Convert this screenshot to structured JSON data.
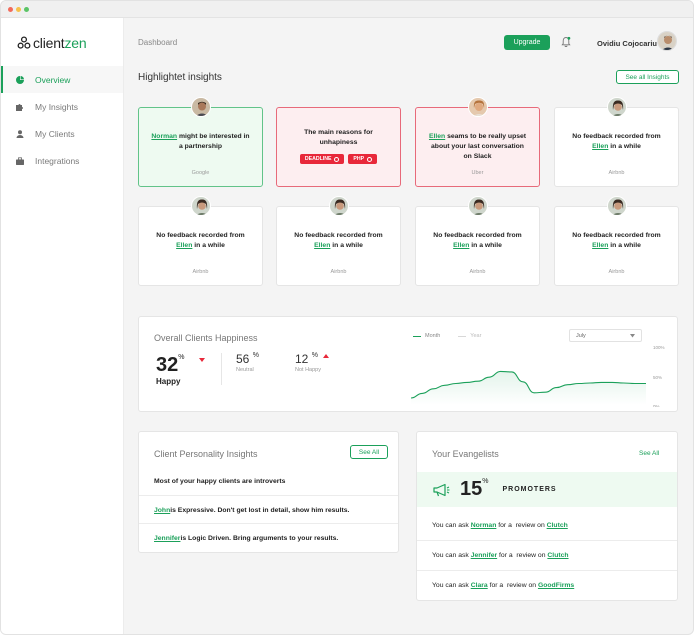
{
  "window": {
    "controls": [
      "close",
      "minimize",
      "maximize"
    ]
  },
  "sidebar": {
    "logo": {
      "prefix": "client",
      "suffix": "zen"
    },
    "items": [
      {
        "label": "Overview",
        "icon": "pie-chart-icon",
        "active": true
      },
      {
        "label": "My Insights",
        "icon": "puzzle-icon",
        "active": false
      },
      {
        "label": "My Clients",
        "icon": "user-icon",
        "active": false
      },
      {
        "label": "Integrations",
        "icon": "briefcase-icon",
        "active": false
      }
    ]
  },
  "header": {
    "breadcrumb": "Dashboard",
    "upgrade_label": "Upgrade",
    "user_name": "Ovidiu Cojocariu"
  },
  "insights": {
    "title": "Highlightet insights",
    "see_all_label": "See all Insights",
    "cards": [
      {
        "variant": "green",
        "link": "Norman",
        "text": " might be interested in a partnership",
        "source": "Google"
      },
      {
        "variant": "red",
        "text": "The main reasons for unhapiness",
        "tags": [
          "DEADLINE",
          "PHP"
        ]
      },
      {
        "variant": "red",
        "link": "Ellen",
        "text": " seams to be really upset about your last conversation on Slack",
        "source": "Uber"
      },
      {
        "variant": "plain",
        "prefix": "No feedback recorded from",
        "link": "Ellen",
        "text": " in a while",
        "source": "Airbnb"
      },
      {
        "variant": "plain",
        "prefix": "No feedback recorded from",
        "link": "Ellen",
        "text": " in a while",
        "source": "Airbnb"
      },
      {
        "variant": "plain",
        "prefix": "No feedback recorded from",
        "link": "Ellen",
        "text": " in a while",
        "source": "Airbnb"
      },
      {
        "variant": "plain",
        "prefix": "No feedback recorded from",
        "link": "Ellen",
        "text": " in a while",
        "source": "Airbnb"
      },
      {
        "variant": "plain",
        "prefix": "No feedback recorded from",
        "link": "Ellen",
        "text": " in a while",
        "source": "Airbnb"
      }
    ]
  },
  "happiness": {
    "title": "Overall Clients Happiness",
    "happy": {
      "value": "32",
      "unit": "%",
      "label": "Happy"
    },
    "neutral": {
      "value": "56",
      "unit": "%",
      "label": "Neutral"
    },
    "not_happy": {
      "value": "12",
      "unit": "%",
      "label": "Not Happy"
    },
    "legend": [
      "Month",
      "Year"
    ],
    "period_select": "July",
    "y_ticks": [
      "100%",
      "50%",
      "0%"
    ]
  },
  "chart_data": {
    "type": "area",
    "series": [
      {
        "name": "Month",
        "values": [
          12,
          20,
          28,
          34,
          37,
          39,
          41,
          48,
          58,
          57,
          40,
          21,
          22,
          30,
          35,
          37,
          38,
          39,
          39,
          38,
          37,
          37
        ]
      },
      {
        "name": "Year",
        "values": []
      }
    ],
    "y_ticks": [
      "100%",
      "50%",
      "0%"
    ],
    "ylim": [
      0,
      100
    ],
    "grid": false,
    "legend_position": "top"
  },
  "personality": {
    "title": "Client Personality Insights",
    "see_all_label": "See All",
    "intro": "Most of your happy clients are introverts",
    "rows": [
      {
        "name": "John",
        "text": " is Expressive. Don't get lost in detail, show him results."
      },
      {
        "name": "Jennifer",
        "text": " is Logic Driven. Bring arguments to your results."
      }
    ]
  },
  "evangelists": {
    "title": "Your Evangelists",
    "see_all_label": "See All",
    "promoters": {
      "value": "15",
      "unit": "%",
      "label": "PROMOTERS"
    },
    "rows": [
      {
        "prefix": "You can ask ",
        "name": "Norman",
        "middle": " for a  review on ",
        "site": "Clutch"
      },
      {
        "prefix": "You can ask ",
        "name": "Jennifer",
        "middle": " for a  review on ",
        "site": "Clutch"
      },
      {
        "prefix": "You can ask ",
        "name": "Clara",
        "middle": " for a  review on ",
        "site": "GoodFirms"
      }
    ]
  },
  "colors": {
    "accent": "#1ba05a",
    "alert": "#e8283a",
    "positive_bg": "#eefaf1",
    "negative_bg": "#fdeef0"
  }
}
